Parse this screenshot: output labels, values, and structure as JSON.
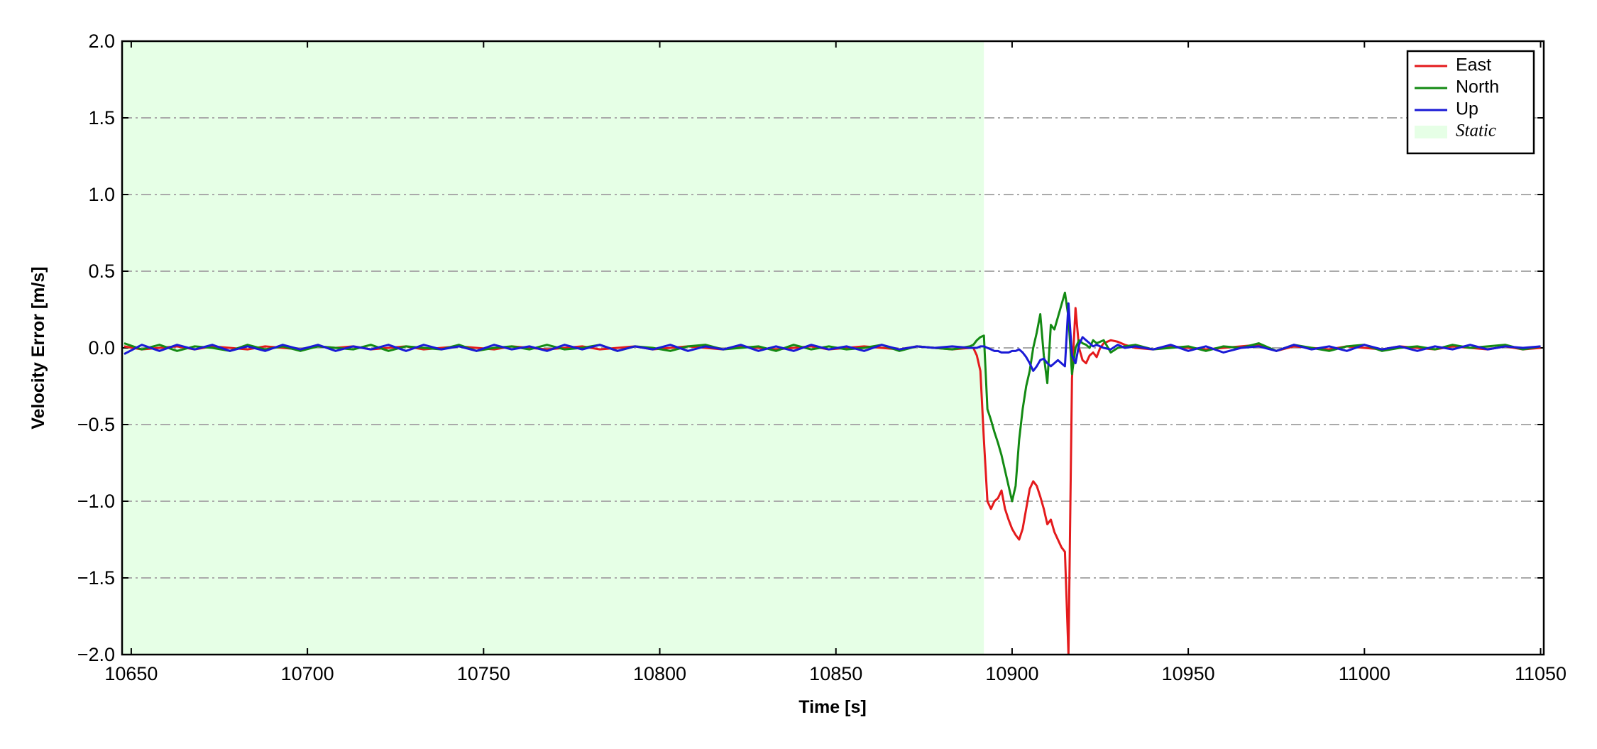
{
  "chart_data": {
    "type": "line",
    "xlabel": "Time [s]",
    "ylabel": "Velocity Error [m/s]",
    "xlim": [
      10647.4,
      11050.9
    ],
    "ylim": [
      -2.0,
      2.0
    ],
    "xticks": [
      10650,
      10700,
      10750,
      10800,
      10850,
      10900,
      10950,
      11000,
      11050
    ],
    "yticks": [
      {
        "value": -2.0,
        "label": "−2.0"
      },
      {
        "value": -1.5,
        "label": "−1.5"
      },
      {
        "value": -1.0,
        "label": "−1.0"
      },
      {
        "value": -0.5,
        "label": "−0.5"
      },
      {
        "value": 0.0,
        "label": "0.0"
      },
      {
        "value": 0.5,
        "label": "0.5"
      },
      {
        "value": 1.0,
        "label": "1.0"
      },
      {
        "value": 1.5,
        "label": "1.5"
      },
      {
        "value": 2.0,
        "label": "2.0"
      }
    ],
    "grid": true,
    "legend_position": "upper right",
    "shaded_region": {
      "label": "Static",
      "xrange": [
        10647.4,
        10892
      ],
      "color": "#e6ffe6"
    },
    "x": [
      10648,
      10653,
      10658,
      10663,
      10668,
      10673,
      10678,
      10683,
      10688,
      10693,
      10698,
      10703,
      10708,
      10713,
      10718,
      10723,
      10728,
      10733,
      10738,
      10743,
      10748,
      10753,
      10758,
      10763,
      10768,
      10773,
      10778,
      10783,
      10788,
      10793,
      10798,
      10803,
      10808,
      10813,
      10818,
      10823,
      10828,
      10833,
      10838,
      10843,
      10848,
      10853,
      10858,
      10863,
      10868,
      10873,
      10878,
      10883,
      10888,
      10889,
      10890,
      10891,
      10892,
      10893,
      10894,
      10895,
      10896,
      10897,
      10898,
      10899,
      10900,
      10901,
      10902,
      10903,
      10904,
      10905,
      10906,
      10907,
      10908,
      10909,
      10910,
      10911,
      10912,
      10913,
      10914,
      10915,
      10916,
      10917,
      10918,
      10919,
      10920,
      10921,
      10922,
      10923,
      10924,
      10925,
      10926,
      10928,
      10930,
      10932,
      10935,
      10940,
      10945,
      10950,
      10955,
      10960,
      10965,
      10970,
      10975,
      10980,
      10985,
      10990,
      10995,
      11000,
      11005,
      11010,
      11015,
      11020,
      11025,
      11030,
      11035,
      11040,
      11045,
      11050
    ],
    "series": [
      {
        "name": "East",
        "color": "#e41a1c",
        "values": [
          0.01,
          -0.01,
          0.0,
          0.01,
          -0.01,
          0.01,
          0.0,
          -0.01,
          0.01,
          0.0,
          -0.01,
          0.01,
          0.0,
          0.01,
          -0.01,
          0.0,
          0.01,
          -0.01,
          0.0,
          0.01,
          0.0,
          -0.01,
          0.01,
          0.0,
          -0.01,
          0.0,
          0.01,
          -0.01,
          0.0,
          0.01,
          -0.01,
          0.0,
          0.01,
          0.0,
          -0.01,
          0.01,
          0.0,
          -0.01,
          0.0,
          0.01,
          -0.01,
          0.0,
          0.01,
          0.0,
          -0.01,
          0.01,
          0.0,
          -0.01,
          0.0,
          0.0,
          -0.05,
          -0.15,
          -0.6,
          -1.0,
          -1.05,
          -1.0,
          -0.98,
          -0.93,
          -1.05,
          -1.12,
          -1.18,
          -1.22,
          -1.25,
          -1.18,
          -1.05,
          -0.92,
          -0.87,
          -0.9,
          -0.97,
          -1.05,
          -1.15,
          -1.12,
          -1.2,
          -1.25,
          -1.3,
          -1.33,
          -2.0,
          -0.2,
          0.26,
          0.0,
          -0.08,
          -0.1,
          -0.05,
          -0.03,
          -0.06,
          0.0,
          0.03,
          0.05,
          0.04,
          0.02,
          0.0,
          -0.01,
          0.01,
          0.0,
          -0.01,
          0.0,
          0.01,
          0.02,
          -0.02,
          0.01,
          0.0,
          -0.01,
          0.01,
          0.0,
          -0.01,
          0.01,
          0.0,
          -0.01,
          0.01,
          0.0,
          -0.01,
          0.01,
          -0.01,
          0.0
        ]
      },
      {
        "name": "North",
        "color": "#138a13",
        "values": [
          0.03,
          -0.01,
          0.02,
          -0.02,
          0.01,
          0.0,
          -0.02,
          0.02,
          -0.01,
          0.01,
          -0.02,
          0.01,
          0.0,
          -0.01,
          0.02,
          -0.02,
          0.01,
          0.0,
          -0.01,
          0.02,
          -0.02,
          0.0,
          0.01,
          -0.01,
          0.02,
          -0.01,
          0.0,
          0.02,
          -0.02,
          0.01,
          0.0,
          -0.02,
          0.01,
          0.02,
          -0.01,
          0.0,
          0.01,
          -0.02,
          0.02,
          -0.01,
          0.01,
          -0.01,
          0.0,
          0.02,
          -0.02,
          0.01,
          0.0,
          -0.01,
          0.01,
          0.02,
          0.05,
          0.07,
          0.08,
          -0.4,
          -0.47,
          -0.55,
          -0.62,
          -0.7,
          -0.8,
          -0.9,
          -1.0,
          -0.9,
          -0.6,
          -0.4,
          -0.25,
          -0.15,
          0.0,
          0.1,
          0.22,
          -0.05,
          -0.23,
          0.15,
          0.12,
          0.2,
          0.28,
          0.36,
          0.2,
          -0.17,
          0.0,
          0.05,
          0.03,
          0.02,
          0.0,
          0.05,
          0.03,
          0.04,
          0.05,
          -0.03,
          0.0,
          0.01,
          0.02,
          -0.01,
          0.0,
          0.01,
          -0.02,
          0.01,
          0.0,
          0.03,
          -0.02,
          0.02,
          0.0,
          -0.02,
          0.01,
          0.02,
          -0.02,
          0.0,
          0.01,
          -0.01,
          0.02,
          0.0,
          0.01,
          0.02,
          -0.01,
          0.01
        ]
      },
      {
        "name": "Up",
        "color": "#1a1ad6",
        "values": [
          -0.04,
          0.02,
          -0.02,
          0.02,
          -0.01,
          0.02,
          -0.02,
          0.01,
          -0.02,
          0.02,
          -0.01,
          0.02,
          -0.02,
          0.01,
          -0.01,
          0.02,
          -0.02,
          0.02,
          -0.01,
          0.01,
          -0.02,
          0.02,
          -0.01,
          0.01,
          -0.02,
          0.02,
          -0.01,
          0.02,
          -0.02,
          0.01,
          -0.01,
          0.02,
          -0.02,
          0.01,
          -0.01,
          0.02,
          -0.02,
          0.01,
          -0.02,
          0.02,
          -0.01,
          0.01,
          -0.02,
          0.02,
          -0.01,
          0.01,
          0.0,
          0.01,
          0.0,
          0.0,
          0.0,
          0.01,
          0.01,
          0.0,
          -0.01,
          -0.02,
          -0.02,
          -0.03,
          -0.03,
          -0.03,
          -0.02,
          -0.02,
          -0.01,
          -0.03,
          -0.06,
          -0.1,
          -0.15,
          -0.12,
          -0.08,
          -0.07,
          -0.1,
          -0.12,
          -0.1,
          -0.08,
          -0.1,
          -0.12,
          0.29,
          -0.05,
          -0.1,
          0.02,
          0.07,
          0.05,
          0.03,
          0.01,
          0.02,
          0.01,
          0.0,
          -0.01,
          0.02,
          0.0,
          0.01,
          -0.01,
          0.02,
          -0.02,
          0.01,
          -0.03,
          0.0,
          0.01,
          -0.02,
          0.02,
          -0.01,
          0.01,
          -0.02,
          0.02,
          -0.01,
          0.01,
          -0.02,
          0.01,
          -0.01,
          0.02,
          -0.01,
          0.01,
          0.0,
          0.01
        ]
      }
    ]
  }
}
